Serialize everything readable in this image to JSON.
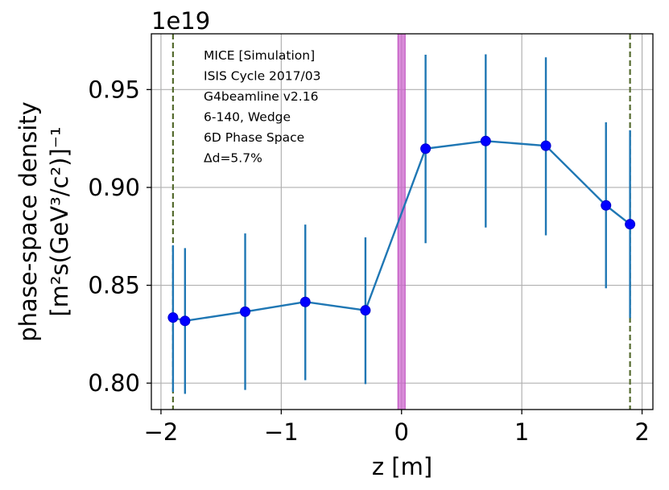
{
  "chart_data": {
    "type": "line",
    "title": "",
    "xlabel": "z [m]",
    "ylabel_line1": "phase-space density",
    "ylabel_line2": "[m²s(GeV³/c²)]⁻¹",
    "y_offset_label": "1e19",
    "x_ticks": [
      -2,
      -1,
      0,
      1,
      2
    ],
    "x_tick_labels": [
      "−2",
      "−1",
      "0",
      "1",
      "2"
    ],
    "y_ticks": [
      0.8,
      0.85,
      0.9,
      0.95
    ],
    "y_tick_labels": [
      "0.80",
      "0.85",
      "0.90",
      "0.95"
    ],
    "xlim": [
      -2.08,
      2.09
    ],
    "ylim": [
      0.7865,
      0.9785
    ],
    "grid": true,
    "series": [
      {
        "color": "#1f77b4",
        "marker_color": "#0000ff",
        "x": [
          -1.9,
          -1.8,
          -1.3,
          -0.8,
          -0.3,
          0.2,
          0.7,
          1.2,
          1.7,
          1.9
        ],
        "y": [
          0.8335,
          0.8318,
          0.8365,
          0.8415,
          0.8372,
          0.9198,
          0.9237,
          0.9213,
          0.8908,
          0.8812
        ],
        "err_low": [
          0.7955,
          0.7945,
          0.7965,
          0.8015,
          0.7995,
          0.8715,
          0.8795,
          0.8755,
          0.8485,
          0.8332
        ],
        "err_high": [
          0.8705,
          0.869,
          0.8765,
          0.881,
          0.8745,
          0.9678,
          0.968,
          0.9665,
          0.9333,
          0.9292
        ]
      }
    ],
    "vlines": [
      {
        "x": -1.9,
        "color": "#556b2f",
        "style": "dashed"
      },
      {
        "x": 1.9,
        "color": "#556b2f",
        "style": "dashed"
      }
    ],
    "vband": {
      "x0": -0.03,
      "x1": 0.03,
      "color": "#cc66cc"
    },
    "annotations": [
      "MICE [Simulation]",
      "ISIS Cycle 2017/03",
      "G4beamline v2.16",
      "6-140, Wedge",
      "6D Phase Space",
      "Δd=5.7%"
    ]
  }
}
